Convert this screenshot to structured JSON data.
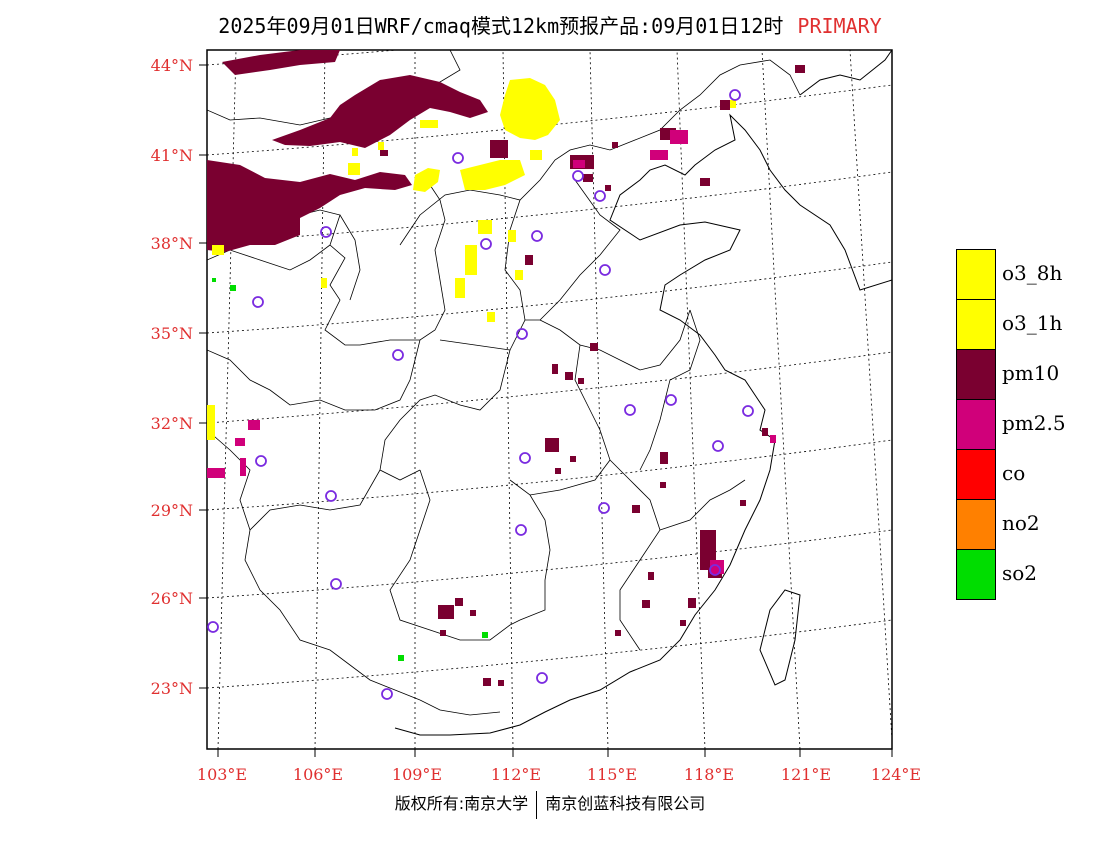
{
  "title": {
    "main": "2025年09月01日WRF/cmaq模式12km预报产品:09月01日12时",
    "tag": "PRIMARY"
  },
  "axes": {
    "lat_labels": [
      "44°N",
      "41°N",
      "38°N",
      "35°N",
      "32°N",
      "29°N",
      "26°N",
      "23°N"
    ],
    "lon_labels": [
      "103°E",
      "106°E",
      "109°E",
      "112°E",
      "115°E",
      "118°E",
      "121°E",
      "124°E"
    ]
  },
  "legend": [
    {
      "label": "o3_8h",
      "color": "#ffff00"
    },
    {
      "label": "o3_1h",
      "color": "#ffff00"
    },
    {
      "label": "pm10",
      "color": "#7a0030"
    },
    {
      "label": "pm2.5",
      "color": "#d0007a"
    },
    {
      "label": "co",
      "color": "#ff0000"
    },
    {
      "label": "no2",
      "color": "#ff8000"
    },
    {
      "label": "so2",
      "color": "#00dd00"
    }
  ],
  "footer": {
    "left": "版权所有:南京大学",
    "right": "南京创蓝科技有限公司"
  }
}
